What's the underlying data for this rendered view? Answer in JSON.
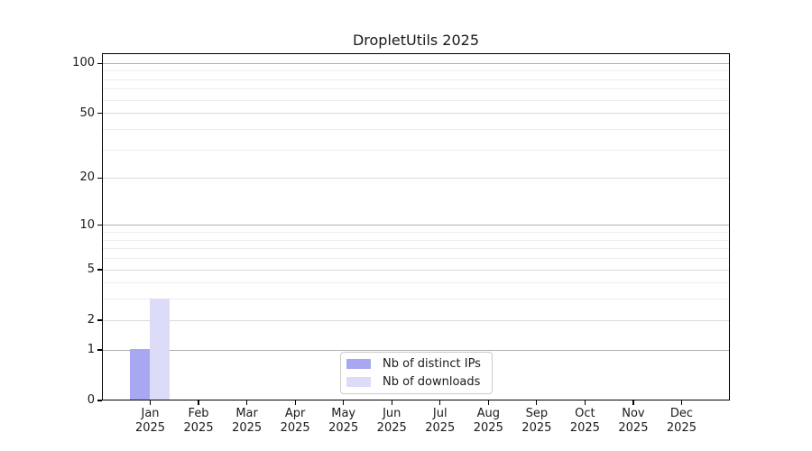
{
  "chart_data": {
    "type": "bar",
    "title": "DropletUtils 2025",
    "x_year": "2025",
    "categories": [
      "Jan",
      "Feb",
      "Mar",
      "Apr",
      "May",
      "Jun",
      "Jul",
      "Aug",
      "Sep",
      "Oct",
      "Nov",
      "Dec"
    ],
    "series": [
      {
        "name": "Nb of distinct IPs",
        "color": "#a8a8f2",
        "values": [
          1,
          0,
          0,
          0,
          0,
          0,
          0,
          0,
          0,
          0,
          0,
          0
        ]
      },
      {
        "name": "Nb of downloads",
        "color": "#dcdcf8",
        "values": [
          3,
          0,
          0,
          0,
          0,
          0,
          0,
          0,
          0,
          0,
          0,
          0
        ]
      }
    ],
    "yscale": "log1p",
    "ylim": [
      0,
      115
    ],
    "yticks": [
      0,
      1,
      2,
      5,
      10,
      20,
      50,
      100
    ],
    "ytick_labels": [
      "0",
      "1",
      "2",
      "5",
      "10",
      "20",
      "50",
      "100"
    ],
    "major_grid_values": [
      1,
      10,
      100
    ],
    "labeled_grid_values": [
      2,
      5,
      20,
      50
    ],
    "minor_grid_values": [
      3,
      4,
      6,
      7,
      8,
      9,
      30,
      40,
      60,
      70,
      80,
      90
    ],
    "grid": true,
    "legend_position": "lower center"
  },
  "colors": {
    "background": "#ffffff",
    "spine": "#000000",
    "text": "#1a1a1a",
    "major_grid": "#b2b2b2",
    "labeled_grid": "#dadada",
    "minor_grid": "#ededed",
    "legend_border": "#cccccc",
    "bar_distinct_ips": "#a8a8f2",
    "bar_downloads": "#dcdcf8"
  }
}
